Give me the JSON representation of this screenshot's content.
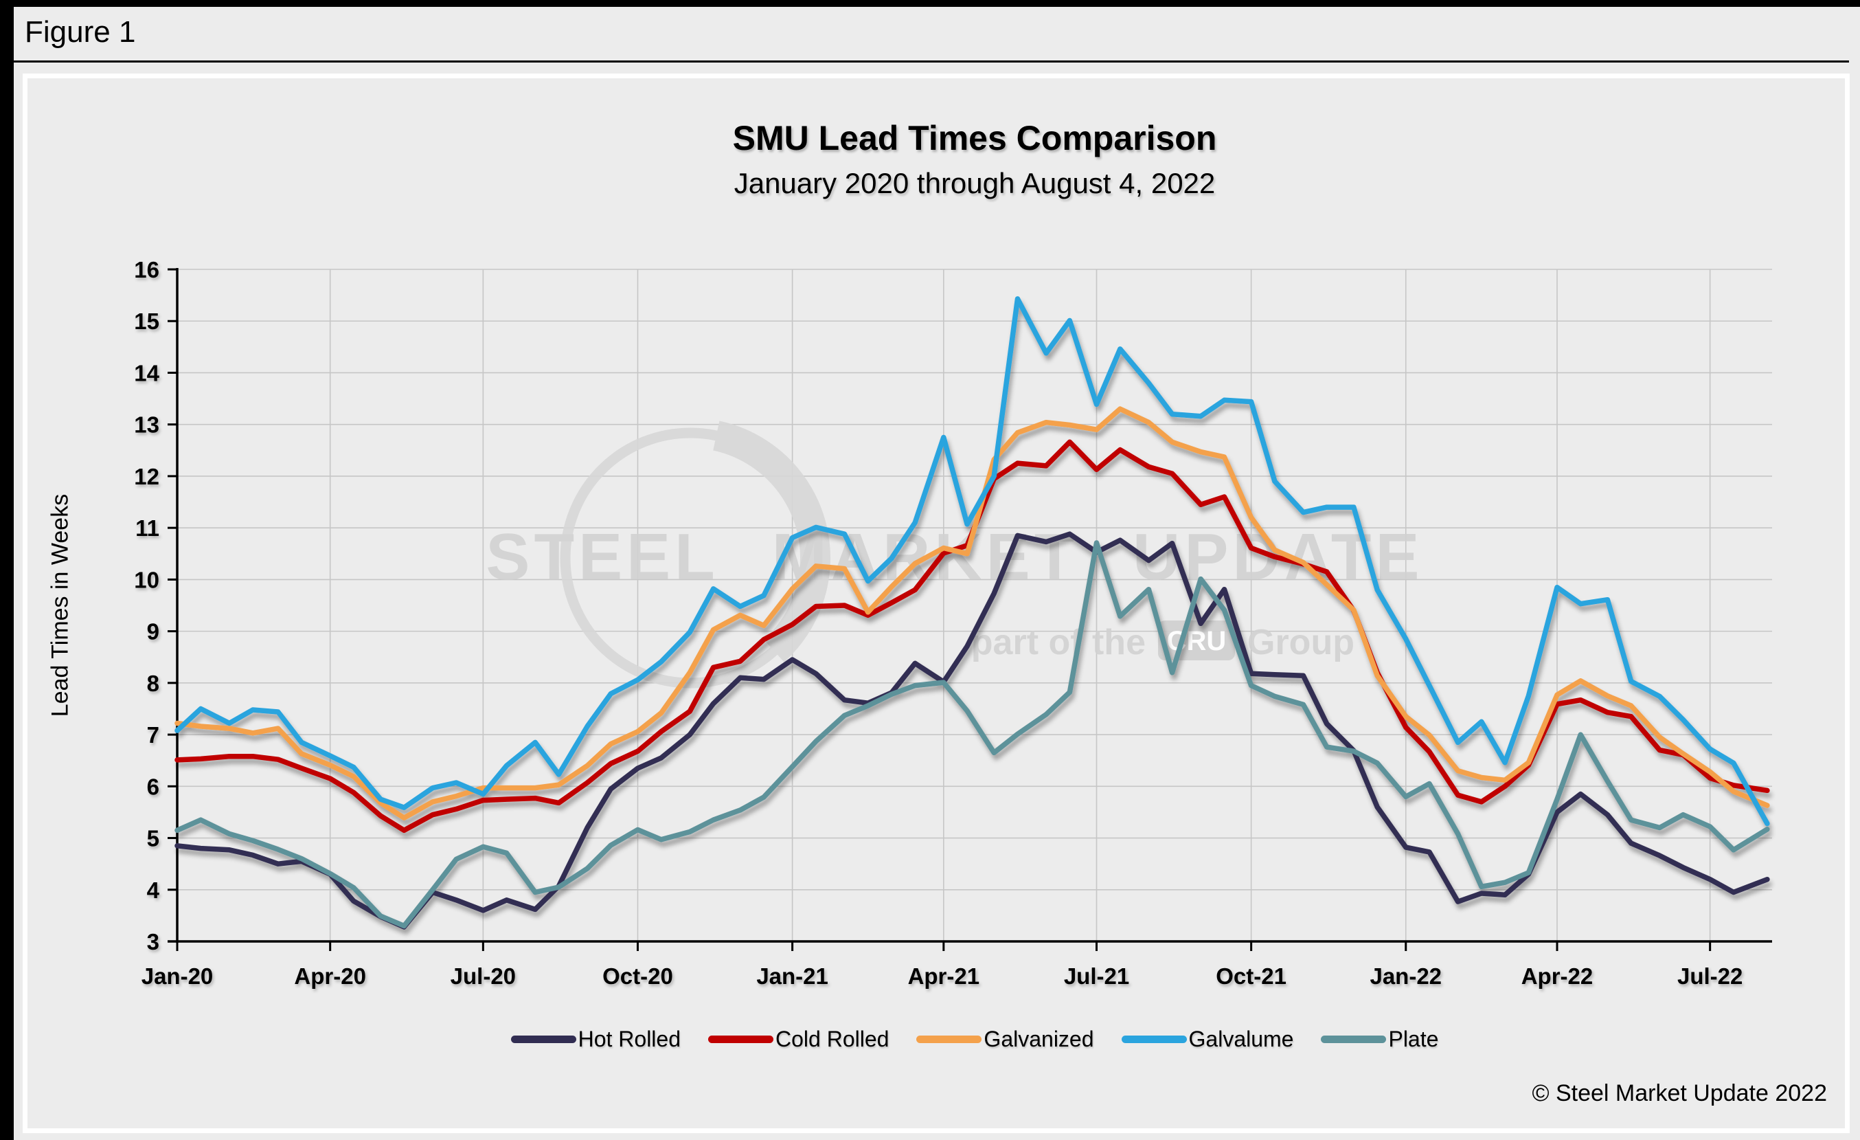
{
  "figure_label": "Figure 1",
  "title": "SMU Lead Times Comparison",
  "subtitle": "January 2020 through August 4, 2022",
  "copyright": "© Steel Market Update 2022",
  "watermark": {
    "line1": "STEEL MARKET UPDATE",
    "line2_prefix": "part of the",
    "badge": "CRU",
    "line2_suffix": "Group"
  },
  "chart_data": {
    "type": "line",
    "title": "SMU Lead Times Comparison",
    "subtitle": "January 2020 through August 4, 2022",
    "xlabel": "",
    "ylabel": "Lead Times in Weeks",
    "ylim": [
      3,
      16
    ],
    "grid": true,
    "legend_position": "bottom",
    "yticks": [
      3,
      4,
      5,
      6,
      7,
      8,
      9,
      10,
      11,
      12,
      13,
      14,
      15,
      16
    ],
    "xticks": [
      {
        "label": "Jan-20",
        "date": "2020-01-01"
      },
      {
        "label": "Apr-20",
        "date": "2020-04-01"
      },
      {
        "label": "Jul-20",
        "date": "2020-07-01"
      },
      {
        "label": "Oct-20",
        "date": "2020-10-01"
      },
      {
        "label": "Jan-21",
        "date": "2021-01-01"
      },
      {
        "label": "Apr-21",
        "date": "2021-04-01"
      },
      {
        "label": "Jul-21",
        "date": "2021-07-01"
      },
      {
        "label": "Oct-21",
        "date": "2021-10-01"
      },
      {
        "label": "Jan-22",
        "date": "2022-01-01"
      },
      {
        "label": "Apr-22",
        "date": "2022-04-01"
      },
      {
        "label": "Jul-22",
        "date": "2022-07-01"
      }
    ],
    "x_dates": [
      "2020-01-01",
      "2020-01-15",
      "2020-02-01",
      "2020-02-15",
      "2020-03-01",
      "2020-03-15",
      "2020-04-01",
      "2020-04-15",
      "2020-05-01",
      "2020-05-15",
      "2020-06-01",
      "2020-06-15",
      "2020-07-01",
      "2020-07-15",
      "2020-08-01",
      "2020-08-15",
      "2020-09-01",
      "2020-09-15",
      "2020-10-01",
      "2020-10-15",
      "2020-11-01",
      "2020-11-15",
      "2020-12-01",
      "2020-12-15",
      "2021-01-01",
      "2021-01-15",
      "2021-02-01",
      "2021-02-15",
      "2021-03-01",
      "2021-03-15",
      "2021-04-01",
      "2021-04-15",
      "2021-05-01",
      "2021-05-15",
      "2021-06-01",
      "2021-06-15",
      "2021-07-01",
      "2021-07-15",
      "2021-08-01",
      "2021-08-15",
      "2021-09-01",
      "2021-09-15",
      "2021-10-01",
      "2021-10-15",
      "2021-11-01",
      "2021-11-15",
      "2021-12-01",
      "2021-12-15",
      "2022-01-01",
      "2022-01-15",
      "2022-02-01",
      "2022-02-15",
      "2022-03-01",
      "2022-03-15",
      "2022-04-01",
      "2022-04-15",
      "2022-05-01",
      "2022-05-15",
      "2022-06-01",
      "2022-06-15",
      "2022-07-01",
      "2022-07-15",
      "2022-08-04"
    ],
    "series": [
      {
        "name": "Hot Rolled",
        "color": "#312D52",
        "values": [
          4.85,
          4.8,
          4.77,
          4.67,
          4.5,
          4.55,
          4.3,
          3.78,
          3.48,
          3.28,
          3.95,
          3.8,
          3.6,
          3.8,
          3.62,
          4.07,
          5.2,
          5.95,
          6.35,
          6.55,
          7.0,
          7.6,
          8.1,
          8.07,
          8.45,
          8.18,
          7.67,
          7.61,
          7.81,
          8.38,
          8.02,
          8.71,
          9.73,
          10.85,
          10.73,
          10.88,
          10.53,
          10.76,
          10.37,
          10.7,
          9.15,
          9.81,
          8.18,
          8.16,
          8.14,
          7.21,
          6.69,
          5.6,
          4.82,
          4.73,
          3.77,
          3.93,
          3.9,
          4.3,
          5.5,
          5.85,
          5.45,
          4.9,
          4.66,
          4.43,
          4.2,
          3.95,
          4.2
        ]
      },
      {
        "name": "Cold Rolled",
        "color": "#C00000",
        "values": [
          6.51,
          6.53,
          6.58,
          6.58,
          6.52,
          6.35,
          6.15,
          5.88,
          5.43,
          5.15,
          5.45,
          5.56,
          5.73,
          5.75,
          5.77,
          5.68,
          6.07,
          6.44,
          6.68,
          7.06,
          7.45,
          8.3,
          8.42,
          8.84,
          9.13,
          9.48,
          9.5,
          9.31,
          9.55,
          9.8,
          10.51,
          10.66,
          11.95,
          12.25,
          12.2,
          12.66,
          12.13,
          12.51,
          12.18,
          12.05,
          11.45,
          11.6,
          10.61,
          10.44,
          10.3,
          10.15,
          9.4,
          8.2,
          7.14,
          6.67,
          5.83,
          5.7,
          6.0,
          6.41,
          7.59,
          7.67,
          7.43,
          7.35,
          6.7,
          6.61,
          6.16,
          6.02,
          5.92
        ]
      },
      {
        "name": "Galvanized",
        "color": "#F4A14B",
        "values": [
          7.22,
          7.16,
          7.12,
          7.03,
          7.12,
          6.63,
          6.41,
          6.19,
          5.68,
          5.39,
          5.7,
          5.81,
          5.97,
          5.97,
          5.97,
          6.03,
          6.4,
          6.82,
          7.06,
          7.42,
          8.2,
          9.03,
          9.31,
          9.11,
          9.82,
          10.26,
          10.21,
          9.37,
          9.86,
          10.31,
          10.61,
          10.5,
          12.32,
          12.84,
          13.04,
          12.99,
          12.9,
          13.3,
          13.04,
          12.66,
          12.47,
          12.37,
          11.2,
          10.57,
          10.33,
          9.9,
          9.41,
          8.14,
          7.35,
          6.99,
          6.3,
          6.17,
          6.12,
          6.46,
          7.77,
          8.04,
          7.75,
          7.56,
          6.95,
          6.63,
          6.28,
          5.9,
          5.63
        ]
      },
      {
        "name": "Galvalume",
        "color": "#2AA4DE",
        "values": [
          7.08,
          7.5,
          7.22,
          7.48,
          7.44,
          6.85,
          6.59,
          6.37,
          5.75,
          5.59,
          5.97,
          6.07,
          5.85,
          6.4,
          6.85,
          6.23,
          7.16,
          7.79,
          8.06,
          8.41,
          8.98,
          9.82,
          9.48,
          9.69,
          10.81,
          11.01,
          10.88,
          9.97,
          10.41,
          11.1,
          12.75,
          11.07,
          12.0,
          15.43,
          14.38,
          15.01,
          13.39,
          14.46,
          13.8,
          13.2,
          13.16,
          13.47,
          13.44,
          11.9,
          11.3,
          11.4,
          11.4,
          9.8,
          8.85,
          7.95,
          6.85,
          7.25,
          6.46,
          7.75,
          9.85,
          9.53,
          9.61,
          8.03,
          7.74,
          7.29,
          6.72,
          6.45,
          5.28
        ]
      },
      {
        "name": "Plate",
        "color": "#5D929A",
        "values": [
          5.15,
          5.35,
          5.08,
          4.95,
          4.78,
          4.6,
          4.31,
          4.04,
          3.49,
          3.3,
          4.0,
          4.59,
          4.83,
          4.71,
          3.95,
          4.05,
          4.41,
          4.86,
          5.16,
          4.97,
          5.12,
          5.35,
          5.54,
          5.79,
          6.38,
          6.87,
          7.37,
          7.56,
          7.78,
          7.95,
          8.01,
          7.46,
          6.65,
          7.01,
          7.39,
          7.82,
          10.71,
          9.29,
          9.81,
          8.2,
          10.01,
          9.41,
          7.95,
          7.74,
          7.58,
          6.76,
          6.68,
          6.45,
          5.8,
          6.05,
          5.08,
          4.06,
          4.14,
          4.33,
          5.75,
          7.0,
          6.1,
          5.35,
          5.2,
          5.45,
          5.22,
          4.77,
          5.17
        ]
      }
    ]
  }
}
